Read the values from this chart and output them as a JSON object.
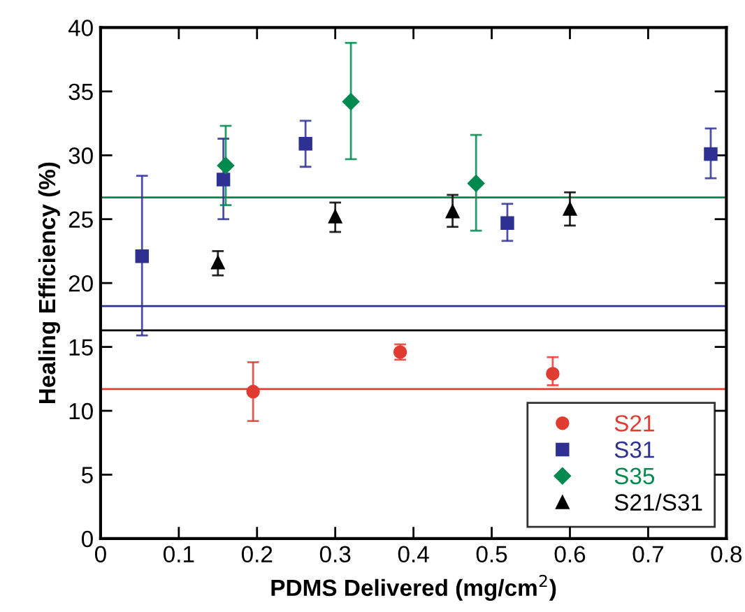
{
  "chart_data": {
    "type": "scatter",
    "xlabel": "PDMS Delivered (mg/cm$^{2}$)",
    "ylabel": "Healing Efficiency (%)",
    "xlim": [
      0,
      0.8
    ],
    "ylim": [
      0,
      40
    ],
    "xticks": [
      0,
      0.1,
      0.2,
      0.3,
      0.4,
      0.5,
      0.6,
      0.7,
      0.8
    ],
    "yticks": [
      0,
      5,
      10,
      15,
      20,
      25,
      30,
      35,
      40
    ],
    "grid": false,
    "legend": "bottom right",
    "series": [
      {
        "name": "S21",
        "color": "#e03c31",
        "marker": "circle",
        "x": [
          0.195,
          0.383,
          0.578
        ],
        "values": [
          11.5,
          14.6,
          12.9
        ],
        "errors": [
          [
            9.2,
            13.8
          ],
          [
            14.0,
            15.2
          ],
          [
            12.0,
            14.2
          ]
        ]
      },
      {
        "name": "S31",
        "color": "#2e3192",
        "marker": "square",
        "x": [
          0.053,
          0.157,
          0.262,
          0.52,
          0.78
        ],
        "values": [
          22.1,
          28.1,
          30.9,
          24.7,
          30.1
        ],
        "errors": [
          [
            15.9,
            28.4
          ],
          [
            25.0,
            31.3
          ],
          [
            29.1,
            32.7
          ],
          [
            23.3,
            26.2
          ],
          [
            28.2,
            32.1
          ]
        ]
      },
      {
        "name": "S35",
        "color": "#00894f",
        "marker": "diamond",
        "x": [
          0.16,
          0.32,
          0.48
        ],
        "values": [
          29.2,
          34.2,
          27.8
        ],
        "errors": [
          [
            26.1,
            32.3
          ],
          [
            29.7,
            38.8
          ],
          [
            24.1,
            31.6
          ]
        ]
      },
      {
        "name": "S21/S31",
        "color": "#000000",
        "marker": "triangle",
        "x": [
          0.15,
          0.3,
          0.45,
          0.6
        ],
        "values": [
          21.6,
          25.2,
          25.6,
          25.8
        ],
        "errors": [
          [
            20.6,
            22.5
          ],
          [
            24.0,
            26.3
          ],
          [
            24.4,
            26.9
          ],
          [
            24.5,
            27.1
          ]
        ]
      }
    ],
    "ref_lines": [
      {
        "axis": "y",
        "value": 26.7,
        "color": "#00894f"
      },
      {
        "axis": "y",
        "value": 18.2,
        "color": "#2e3192"
      },
      {
        "axis": "y",
        "value": 16.3,
        "color": "#000000"
      },
      {
        "axis": "y",
        "value": 11.7,
        "color": "#e03c31"
      }
    ]
  }
}
